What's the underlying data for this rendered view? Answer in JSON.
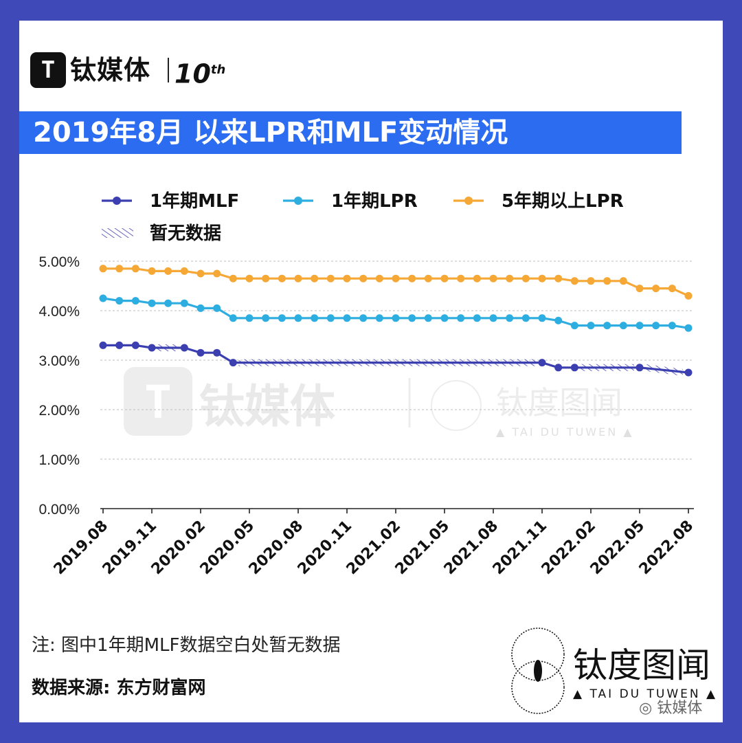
{
  "header": {
    "logo_mark": "T",
    "logo_text": "钛媒体",
    "anniversary": "10",
    "anniversary_suffix": "th",
    "title": "2019年8月 以来LPR和MLF变动情况"
  },
  "watermark": {
    "cn_main": "钛媒体",
    "cn_alt": "钛度图闻",
    "en_alt": "▲ TAI DU TUWEN ▲"
  },
  "footer": {
    "note": "注: 图中1年期MLF数据空白处暂无数据",
    "source": "数据来源: 东方财富网",
    "brand_cn": "钛度图闻",
    "brand_en": "▲ TAI DU TUWEN ▲",
    "wechat": "钛媒体"
  },
  "colors": {
    "frame": "#3f4ab8",
    "banner": "#2b6cf0",
    "mlf": "#3b3fb0",
    "lpr1": "#2eaee0",
    "lpr5": "#f5a836",
    "grid": "#c9c9c9"
  },
  "chart_data": {
    "type": "line",
    "title": "2019年8月 以来LPR和MLF变动情况",
    "xlabel": "",
    "ylabel": "",
    "ylim": [
      0,
      5
    ],
    "yticks": [
      "0.00%",
      "1.00%",
      "2.00%",
      "3.00%",
      "4.00%",
      "5.00%"
    ],
    "x_tick_labels": [
      "2019.08",
      "2019.11",
      "2020.02",
      "2020.05",
      "2020.08",
      "2020.11",
      "2021.02",
      "2021.05",
      "2021.08",
      "2021.11",
      "2022.02",
      "2022.05",
      "2022.08"
    ],
    "months": [
      "2019.08",
      "2019.09",
      "2019.10",
      "2019.11",
      "2019.12",
      "2020.01",
      "2020.02",
      "2020.03",
      "2020.04",
      "2020.05",
      "2020.06",
      "2020.07",
      "2020.08",
      "2020.09",
      "2020.10",
      "2020.11",
      "2020.12",
      "2021.01",
      "2021.02",
      "2021.03",
      "2021.04",
      "2021.05",
      "2021.06",
      "2021.07",
      "2021.08",
      "2021.09",
      "2021.10",
      "2021.11",
      "2021.12",
      "2022.01",
      "2022.02",
      "2022.03",
      "2022.04",
      "2022.05",
      "2022.06",
      "2022.07",
      "2022.08"
    ],
    "legend_no_data": "暂无数据",
    "series": [
      {
        "name": "1年期MLF",
        "values": [
          3.3,
          3.3,
          3.3,
          3.25,
          null,
          3.25,
          3.15,
          3.15,
          2.95,
          null,
          null,
          null,
          null,
          null,
          null,
          null,
          null,
          null,
          null,
          null,
          null,
          null,
          null,
          null,
          null,
          null,
          null,
          2.95,
          2.85,
          2.85,
          null,
          null,
          null,
          2.85,
          null,
          null,
          2.75
        ],
        "no_data_ranges": [
          [
            3,
            5
          ],
          [
            8,
            27
          ],
          [
            29,
            33
          ],
          [
            33,
            36
          ]
        ]
      },
      {
        "name": "1年期LPR",
        "values": [
          4.25,
          4.2,
          4.2,
          4.15,
          4.15,
          4.15,
          4.05,
          4.05,
          3.85,
          3.85,
          3.85,
          3.85,
          3.85,
          3.85,
          3.85,
          3.85,
          3.85,
          3.85,
          3.85,
          3.85,
          3.85,
          3.85,
          3.85,
          3.85,
          3.85,
          3.85,
          3.85,
          3.85,
          3.8,
          3.7,
          3.7,
          3.7,
          3.7,
          3.7,
          3.7,
          3.7,
          3.65
        ]
      },
      {
        "name": "5年期以上LPR",
        "values": [
          4.85,
          4.85,
          4.85,
          4.8,
          4.8,
          4.8,
          4.75,
          4.75,
          4.65,
          4.65,
          4.65,
          4.65,
          4.65,
          4.65,
          4.65,
          4.65,
          4.65,
          4.65,
          4.65,
          4.65,
          4.65,
          4.65,
          4.65,
          4.65,
          4.65,
          4.65,
          4.65,
          4.65,
          4.65,
          4.6,
          4.6,
          4.6,
          4.6,
          4.45,
          4.45,
          4.45,
          4.3
        ]
      }
    ]
  }
}
